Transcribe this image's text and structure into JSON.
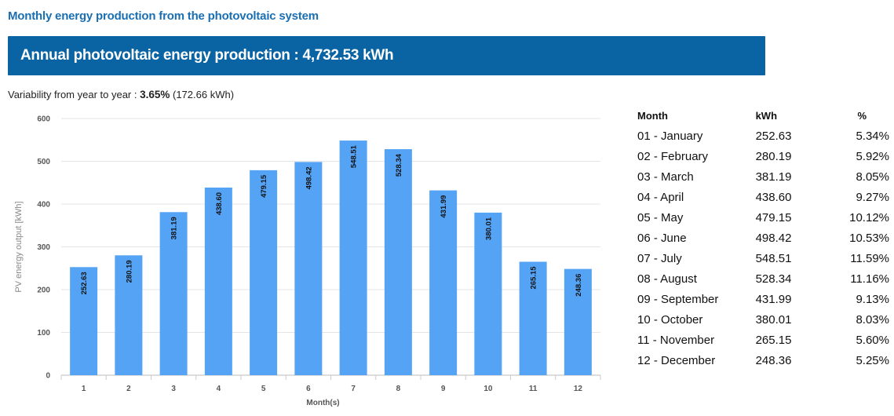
{
  "header": {
    "section_title": "Monthly energy production from the photovoltaic system",
    "banner_text": "Annual photovoltaic energy production : 4,732.53 kWh"
  },
  "variability": {
    "label": "Variability from year to year : ",
    "percent": "3.65%",
    "kwh": "(172.66 kWh)"
  },
  "colors": {
    "banner": "#0a64a3",
    "bar": "#55a3f5",
    "title": "#1a6fb3"
  },
  "chart_data": {
    "type": "bar",
    "categories": [
      "1",
      "2",
      "3",
      "4",
      "5",
      "6",
      "7",
      "8",
      "9",
      "10",
      "11",
      "12"
    ],
    "values": [
      252.63,
      280.19,
      381.19,
      438.6,
      479.15,
      498.42,
      548.51,
      528.34,
      431.99,
      380.01,
      265.15,
      248.36
    ],
    "value_labels": [
      "252.63",
      "280.19",
      "381.19",
      "438.60",
      "479.15",
      "498.42",
      "548.51",
      "528.34",
      "431.99",
      "380.01",
      "265.15",
      "248.36"
    ],
    "xlabel": "Month(s)",
    "ylabel": "PV energy output [kWh]",
    "ylim": [
      0,
      600
    ],
    "yticks": [
      "0",
      "100",
      "200",
      "300",
      "400",
      "500",
      "600"
    ],
    "grid": true
  },
  "table": {
    "headers": [
      "Month",
      "kWh",
      "%"
    ],
    "rows": [
      [
        "01 - January",
        "252.63",
        "5.34%"
      ],
      [
        "02 - February",
        "280.19",
        "5.92%"
      ],
      [
        "03 - March",
        "381.19",
        "8.05%"
      ],
      [
        "04 - April",
        "438.60",
        "9.27%"
      ],
      [
        "05 - May",
        "479.15",
        "10.12%"
      ],
      [
        "06 - June",
        "498.42",
        "10.53%"
      ],
      [
        "07 - July",
        "548.51",
        "11.59%"
      ],
      [
        "08 - August",
        "528.34",
        "11.16%"
      ],
      [
        "09 - September",
        "431.99",
        "9.13%"
      ],
      [
        "10 - October",
        "380.01",
        "8.03%"
      ],
      [
        "11 - November",
        "265.15",
        "5.60%"
      ],
      [
        "12 - December",
        "248.36",
        "5.25%"
      ]
    ]
  }
}
